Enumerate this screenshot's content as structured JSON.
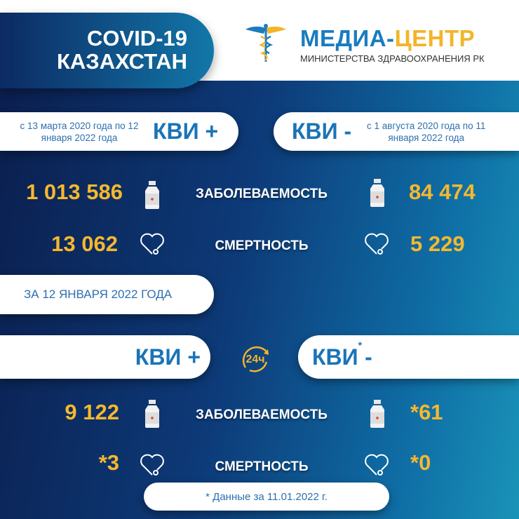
{
  "header": {
    "title_line1": "COVID-19",
    "title_line2": "КАЗАХСТАН",
    "logo_main_blue": "МЕДИА-",
    "logo_main_orange": "ЦЕНТР",
    "logo_sub": "МИНИСТЕРСТВА ЗДРАВООХРАНЕНИЯ РК"
  },
  "cumulative": {
    "left": {
      "period": "с 13 марта 2020 года по 12 января 2022 года",
      "label": "КВИ +",
      "cases": "1 013 586",
      "deaths": "13 062"
    },
    "right": {
      "period": "с 1 августа 2020 года по 11 января 2022 года",
      "label": "КВИ -",
      "cases": "84 474",
      "deaths": "5 229"
    }
  },
  "labels": {
    "cases": "ЗАБОЛЕВАЕМОСТЬ",
    "deaths": "СМЕРТНОСТЬ"
  },
  "daily": {
    "date": "ЗА 12 ЯНВАРЯ 2022 ГОДА",
    "badge": "24ч",
    "left": {
      "label": "КВИ +",
      "cases": "9 122",
      "deaths": "*3"
    },
    "right": {
      "label": "КВИ",
      "asterisk": "*",
      "suffix": "-",
      "cases": "*61",
      "deaths": "*0"
    }
  },
  "footnote": "* Данные за 11.01.2022 г.",
  "colors": {
    "accent_yellow": "#f5b82e",
    "brand_blue": "#1a74b8",
    "bg_dark": "#0b1f4f",
    "bg_teal": "#1a93b8"
  }
}
